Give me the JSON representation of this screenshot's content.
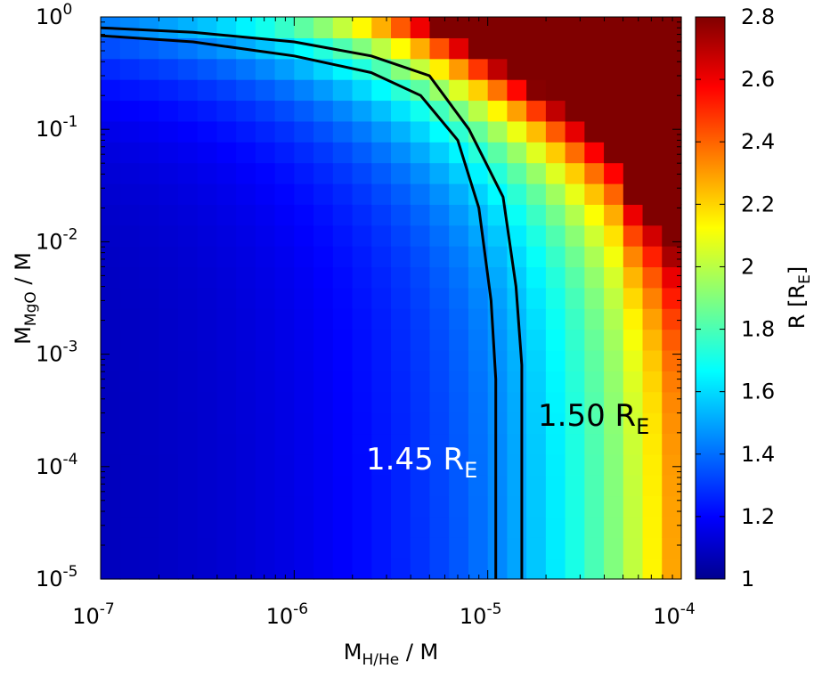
{
  "chart_data": {
    "type": "heatmap",
    "x_axis": {
      "scale": "log",
      "range": [
        1e-07,
        0.0001
      ],
      "label_main": "M",
      "label_sub": "H/He",
      "label_tail": " / M",
      "ticks": [
        {
          "value": 1e-07,
          "base": "10",
          "exp": "-7"
        },
        {
          "value": 1e-06,
          "base": "10",
          "exp": "-6"
        },
        {
          "value": 1e-05,
          "base": "10",
          "exp": "-5"
        },
        {
          "value": 0.0001,
          "base": "10",
          "exp": "-4"
        }
      ]
    },
    "y_axis": {
      "scale": "log",
      "range": [
        1e-05,
        1
      ],
      "label_main": "M",
      "label_sub": "MgO",
      "label_tail": " / M",
      "ticks": [
        {
          "value": 1e-05,
          "base": "10",
          "exp": "-5"
        },
        {
          "value": 0.0001,
          "base": "10",
          "exp": "-4"
        },
        {
          "value": 0.001,
          "base": "10",
          "exp": "-3"
        },
        {
          "value": 0.01,
          "base": "10",
          "exp": "-2"
        },
        {
          "value": 0.1,
          "base": "10",
          "exp": "-1"
        },
        {
          "value": 1,
          "base": "10",
          "exp": "0"
        }
      ]
    },
    "colorbar": {
      "label_main": "R [R",
      "label_sub": "E",
      "label_tail": "]",
      "range": [
        1.0,
        2.8
      ],
      "ticks": [
        "1",
        "1.2",
        "1.4",
        "1.6",
        "1.8",
        "2",
        "2.2",
        "2.4",
        "2.6",
        "2.8"
      ],
      "colormap": "jet"
    },
    "contours": [
      {
        "level": 1.45,
        "label_main": "1.45 R",
        "label_sub": "E",
        "label_color": "#ffffff",
        "points": [
          [
            1e-07,
            0.68
          ],
          [
            3e-07,
            0.6
          ],
          [
            1e-06,
            0.45
          ],
          [
            2.5e-06,
            0.32
          ],
          [
            4.5e-06,
            0.2
          ],
          [
            7e-06,
            0.08
          ],
          [
            9e-06,
            0.02
          ],
          [
            1.04e-05,
            0.003
          ],
          [
            1.1e-05,
            0.0006
          ],
          [
            1.1e-05,
            1e-05
          ]
        ]
      },
      {
        "level": 1.5,
        "label_main": "1.50 R",
        "label_sub": "E",
        "label_color": "#000000",
        "points": [
          [
            1e-07,
            0.8
          ],
          [
            3e-07,
            0.73
          ],
          [
            1e-06,
            0.6
          ],
          [
            2.5e-06,
            0.45
          ],
          [
            5e-06,
            0.3
          ],
          [
            8e-06,
            0.1
          ],
          [
            1.2e-05,
            0.025
          ],
          [
            1.4e-05,
            0.004
          ],
          [
            1.5e-05,
            0.0008
          ],
          [
            1.5e-05,
            1e-05
          ]
        ]
      }
    ]
  }
}
